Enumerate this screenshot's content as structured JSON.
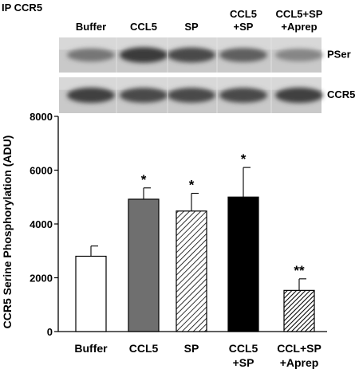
{
  "panel_label": "IP CCR5",
  "blot": {
    "lanes": [
      {
        "line1": "Buffer",
        "line2": ""
      },
      {
        "line1": "CCL5",
        "line2": ""
      },
      {
        "line1": "SP",
        "line2": ""
      },
      {
        "line1": "CCL5",
        "line2": "+SP"
      },
      {
        "line1": "CCL5+SP",
        "line2": "+Aprep"
      }
    ],
    "strips": [
      {
        "label": "PSer",
        "intensity": [
          0.55,
          0.95,
          0.85,
          0.7,
          0.45
        ]
      },
      {
        "label": "CCR5",
        "intensity": [
          0.9,
          0.85,
          0.85,
          0.85,
          0.9
        ]
      }
    ]
  },
  "chart_data": {
    "type": "bar",
    "ylabel": "CCR5 Serine Phosphorylation (ADU)",
    "ylim": [
      0,
      8000
    ],
    "yticks": [
      "0",
      "2000",
      "4000",
      "6000",
      "8000"
    ],
    "categories": [
      {
        "line1": "Buffer",
        "line2": ""
      },
      {
        "line1": "CCL5",
        "line2": ""
      },
      {
        "line1": "SP",
        "line2": ""
      },
      {
        "line1": "CCL5",
        "line2": "+SP"
      },
      {
        "line1": "CCL+SP",
        "line2": "+Aprep"
      }
    ],
    "values": [
      2800,
      4920,
      4480,
      5000,
      1530
    ],
    "errors": [
      380,
      420,
      660,
      1100,
      430
    ],
    "fills": [
      "white",
      "gray",
      "hatch",
      "black",
      "hatch-dark"
    ],
    "significance": [
      "",
      "*",
      "*",
      "*",
      "**"
    ],
    "colors": {
      "gray": "#6f6f6f",
      "black": "#000000",
      "white": "#ffffff"
    }
  }
}
